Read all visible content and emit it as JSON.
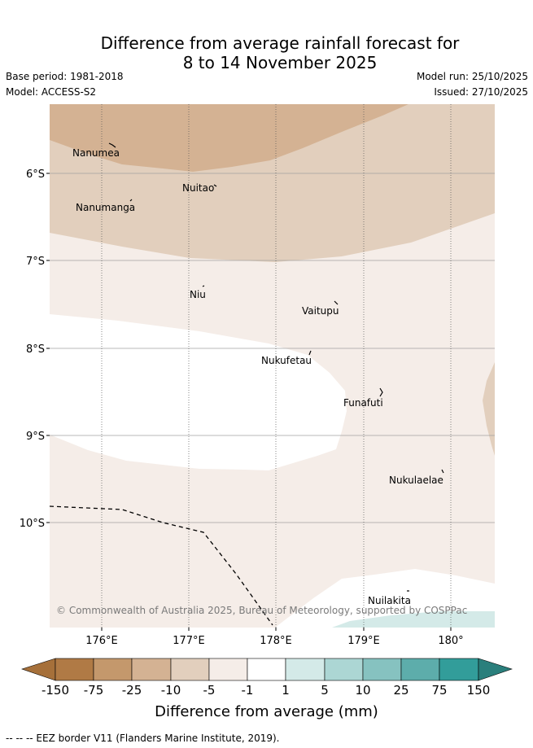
{
  "title": {
    "line1": "Difference from average rainfall forecast for",
    "line2": "8 to 14 November 2025"
  },
  "meta": {
    "base_period": "Base period: 1981-2018",
    "model": "Model: ACCESS-S2",
    "model_run": "Model run: 25/10/2025",
    "issued": "Issued: 27/10/2025"
  },
  "map": {
    "lat_labels": [
      "6°S",
      "7°S",
      "8°S",
      "9°S",
      "10°S"
    ],
    "lon_labels": [
      "176°E",
      "177°E",
      "178°E",
      "179°E",
      "180°"
    ],
    "islands": {
      "nanumea": "Nanumea",
      "nuitao": "Nuitao",
      "nanumanga": "Nanumanga",
      "niu": "Niu",
      "vaitupu": "Vaitupu",
      "nukufetau": "Nukufetau",
      "funafuti": "Funafuti",
      "nukulaelae": "Nukulaelae",
      "nuilakita": "Nuilakita"
    },
    "copyright": "© Commonwealth of Australia 2025, Bureau of Meteorology, supported by COSPPac"
  },
  "colorbar": {
    "ticks": [
      "-150",
      "-75",
      "-25",
      "-10",
      "-5",
      "-1",
      "1",
      "5",
      "10",
      "25",
      "75",
      "150"
    ],
    "colors": {
      "under": "#a6703a",
      "neg_75_150": "#b07a45",
      "neg_25_75": "#c4986c",
      "neg_10_25": "#d4b293",
      "neg_5_10": "#e2cfbd",
      "neg_1_5": "#f5ede8",
      "neutral": "#ffffff",
      "pos_1_5": "#d4eae8",
      "pos_5_10": "#acd6d4",
      "pos_10_25": "#86c2c0",
      "pos_25_75": "#5dadab",
      "pos_75_150": "#329d9a",
      "over": "#2a7f7c"
    },
    "label": "Difference from average (mm)"
  },
  "footer": "-- -- -- EEZ border V11 (Flanders Marine Institute, 2019)."
}
